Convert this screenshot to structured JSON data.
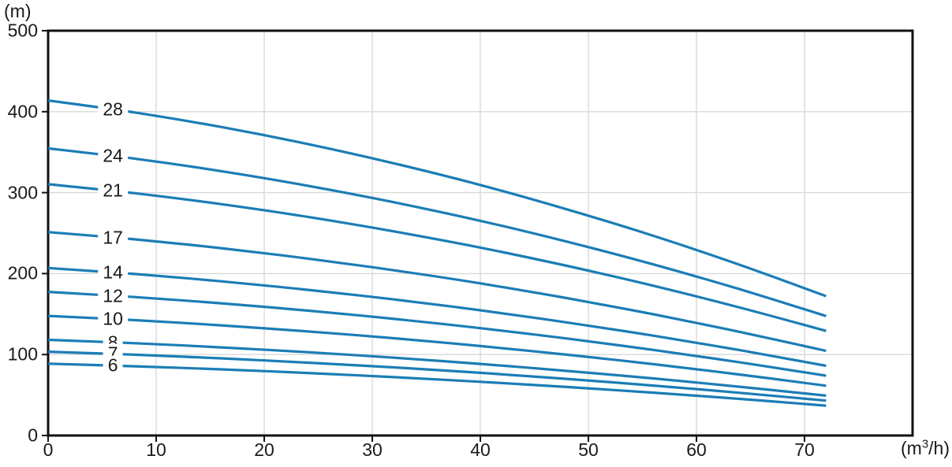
{
  "chart_data": {
    "type": "line",
    "title": "",
    "ylabel": "(m)",
    "xlabel": "(m³/h)",
    "xlabel_pre": "(m",
    "xlabel_sup": "3",
    "xlabel_post": "/h)",
    "xlim": [
      0,
      80
    ],
    "ylim": [
      0,
      500
    ],
    "xticks": [
      0,
      10,
      20,
      30,
      40,
      50,
      60,
      70
    ],
    "yticks": [
      0,
      100,
      200,
      300,
      400,
      500
    ],
    "grid": true,
    "legend_position": "inline-curve-labels",
    "x": [
      0,
      8,
      16,
      24,
      32,
      40,
      48,
      56,
      64,
      72
    ],
    "series": [
      {
        "name": "28",
        "label_x": 6,
        "values": [
          413.8,
          399.0,
          381.1,
          360.1,
          336.2,
          309.4,
          279.4,
          246.7,
          210.8,
          172.2
        ]
      },
      {
        "name": "24",
        "label_x": 6,
        "values": [
          354.7,
          342.0,
          326.6,
          308.6,
          288.1,
          265.2,
          239.5,
          211.4,
          180.7,
          147.6
        ]
      },
      {
        "name": "21",
        "label_x": 6,
        "values": [
          310.4,
          299.3,
          285.8,
          270.1,
          252.1,
          232.1,
          209.6,
          185.0,
          158.1,
          129.2
        ]
      },
      {
        "name": "17",
        "label_x": 6,
        "values": [
          251.3,
          242.3,
          231.4,
          218.6,
          204.1,
          187.9,
          169.7,
          149.8,
          128.0,
          104.6
        ]
      },
      {
        "name": "14",
        "label_x": 6,
        "values": [
          206.9,
          199.5,
          190.5,
          180.0,
          168.1,
          154.7,
          139.7,
          123.3,
          105.4,
          86.1
        ]
      },
      {
        "name": "12",
        "label_x": 6,
        "values": [
          177.4,
          171.0,
          163.3,
          154.3,
          144.1,
          132.6,
          119.8,
          105.7,
          90.4,
          73.8
        ]
      },
      {
        "name": "10",
        "label_x": 6,
        "values": [
          147.8,
          142.5,
          136.1,
          128.6,
          120.1,
          110.5,
          99.8,
          88.1,
          75.3,
          61.5
        ]
      },
      {
        "name": "8",
        "label_x": 6,
        "values": [
          118.2,
          114.0,
          108.9,
          102.9,
          96.1,
          88.4,
          79.8,
          70.5,
          60.2,
          49.2
        ]
      },
      {
        "name": "7",
        "label_x": 6,
        "values": [
          103.5,
          99.8,
          95.3,
          90.0,
          84.1,
          77.4,
          69.9,
          61.7,
          52.7,
          43.1
        ]
      },
      {
        "name": "6",
        "label_x": 6,
        "values": [
          88.7,
          85.5,
          81.7,
          77.2,
          72.1,
          66.3,
          59.9,
          52.9,
          45.2,
          36.9
        ]
      }
    ],
    "line_color": "#1b7db6",
    "grid_color": "#d9d9d9",
    "frame_color": "#111111",
    "text_color": "#1a1a1a"
  }
}
